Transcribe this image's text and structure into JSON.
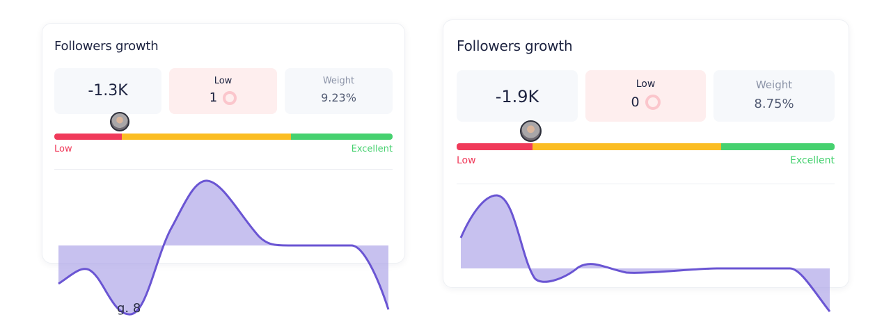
{
  "cards": [
    {
      "title": "Followers growth",
      "value": "-1.3K",
      "low_label": "Low",
      "low_count": "1",
      "weight_label": "Weight",
      "weight_value": "9.23%",
      "scale_low": "Low",
      "scale_excellent": "Excellent",
      "marker_fraction": 0.2
    },
    {
      "title": "Followers growth",
      "value": "-1.9K",
      "low_label": "Low",
      "low_count": "0",
      "weight_label": "Weight",
      "weight_value": "8.75%",
      "scale_low": "Low",
      "scale_excellent": "Excellent",
      "marker_fraction": 0.2
    }
  ],
  "overflow_text": "g. 8",
  "colors": {
    "low": "#f03a5a",
    "mid": "#fbbd23",
    "excellent": "#46d16f",
    "line": "#6a55d3",
    "fill": "#a9a0e6"
  }
}
